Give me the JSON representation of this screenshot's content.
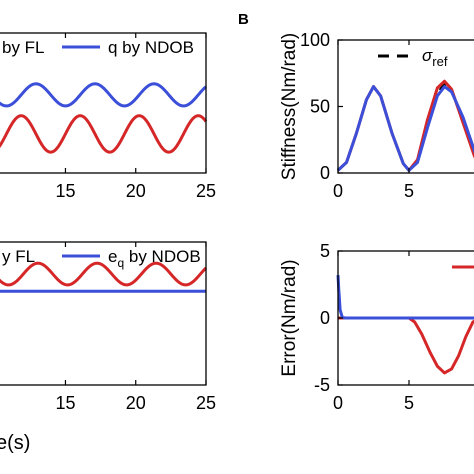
{
  "figure": {
    "panel_b_label": "B",
    "shared_xlabel_fragment": "e(s)"
  },
  "chart_data": [
    {
      "panel": "top-left",
      "type": "line",
      "xlim": [
        10.2,
        25
      ],
      "ylim": [
        -1.15,
        1.0
      ],
      "xticks": [
        15,
        20,
        25
      ],
      "xtick_labels": [
        "15",
        "20",
        "25"
      ],
      "legend": {
        "placement": "top",
        "entries": [
          {
            "label": "by FL",
            "color": "#d62728"
          },
          {
            "label": "q by NDOB",
            "color": "#3b4fd9"
          }
        ]
      },
      "series": [
        {
          "name": "by FL",
          "color": "#d62728",
          "offset": -0.55,
          "amplitude": 0.28,
          "period": 4.2,
          "phase": 15.0,
          "x_start": 10.2,
          "x_end": 25
        },
        {
          "name": "q by NDOB",
          "color": "#3b4fd9",
          "offset": 0.05,
          "amplitude": 0.17,
          "period": 4.2,
          "phase": 16.05,
          "x_start": 10.2,
          "x_end": 25
        }
      ]
    },
    {
      "panel": "bottom-left",
      "type": "line",
      "xlim": [
        10.2,
        25
      ],
      "ylim": [
        -1.9,
        1.0
      ],
      "xticks": [
        15,
        20,
        25
      ],
      "xtick_labels": [
        "15",
        "20",
        "25"
      ],
      "legend": {
        "placement": "top",
        "entries": [
          {
            "label": "y FL",
            "color": "#d62728"
          },
          {
            "label": "e",
            "sub": "q",
            "suffix": " by NDOB",
            "color": "#3b4fd9"
          }
        ]
      },
      "series": [
        {
          "name": "y FL",
          "color": "#d62728",
          "offset": 0.35,
          "amplitude": 0.22,
          "period": 4.2,
          "phase": 12.0,
          "x_start": 10.2,
          "x_end": 25
        },
        {
          "name": "e_q by NDOB",
          "color": "#3b4fd9",
          "offset": 0.0,
          "amplitude": 0.0,
          "period": 4.2,
          "phase": 0,
          "x_start": 10.2,
          "x_end": 25
        }
      ]
    },
    {
      "panel": "top-right",
      "type": "line",
      "ylabel": "Stiffness(Nm/rad)",
      "xlim": [
        0,
        10
      ],
      "ylim": [
        0,
        100
      ],
      "xticks": [
        0,
        5
      ],
      "xtick_labels": [
        "0",
        "5"
      ],
      "yticks": [
        0,
        50,
        100
      ],
      "ytick_labels": [
        "0",
        "50",
        "100"
      ],
      "legend": {
        "placement": "top-right",
        "entries": [
          {
            "label": "σ",
            "sub": "ref",
            "style": "dashed",
            "color": "#000000"
          }
        ]
      },
      "series": [
        {
          "name": "σ_ref",
          "color": "#000000",
          "dashed": true,
          "points": [
            [
              0,
              2
            ],
            [
              0.6,
              8
            ],
            [
              1.3,
              30
            ],
            [
              2.0,
              55
            ],
            [
              2.5,
              65
            ],
            [
              3.0,
              58
            ],
            [
              3.8,
              30
            ],
            [
              4.6,
              7
            ],
            [
              5.0,
              2
            ],
            [
              5.6,
              8
            ],
            [
              6.3,
              35
            ],
            [
              7.0,
              60
            ],
            [
              7.5,
              67
            ],
            [
              8.0,
              62
            ],
            [
              8.8,
              40
            ],
            [
              9.6,
              15
            ],
            [
              10,
              5
            ]
          ]
        },
        {
          "name": "red",
          "color": "#d62728",
          "points": [
            [
              0,
              2
            ],
            [
              0.6,
              8
            ],
            [
              1.3,
              30
            ],
            [
              2.0,
              55
            ],
            [
              2.5,
              65
            ],
            [
              3.0,
              58
            ],
            [
              3.8,
              30
            ],
            [
              4.6,
              7
            ],
            [
              5.0,
              2
            ],
            [
              5.6,
              10
            ],
            [
              6.3,
              40
            ],
            [
              7.0,
              64
            ],
            [
              7.5,
              69
            ],
            [
              8.0,
              63
            ],
            [
              8.8,
              38
            ],
            [
              9.6,
              13
            ],
            [
              10,
              4
            ]
          ]
        },
        {
          "name": "blue",
          "color": "#3b4fd9",
          "points": [
            [
              0,
              2
            ],
            [
              0.6,
              8
            ],
            [
              1.3,
              30
            ],
            [
              2.0,
              55
            ],
            [
              2.5,
              65
            ],
            [
              3.0,
              58
            ],
            [
              3.8,
              30
            ],
            [
              4.6,
              7
            ],
            [
              5.0,
              2
            ],
            [
              5.6,
              8
            ],
            [
              6.3,
              34
            ],
            [
              7.0,
              58
            ],
            [
              7.5,
              65
            ],
            [
              8.0,
              61
            ],
            [
              8.8,
              42
            ],
            [
              9.6,
              17
            ],
            [
              10,
              6
            ]
          ]
        }
      ]
    },
    {
      "panel": "bottom-right",
      "type": "line",
      "ylabel": "Error(Nm/rad)",
      "xlim": [
        0,
        10
      ],
      "ylim": [
        -5,
        5
      ],
      "xticks": [
        0,
        5
      ],
      "xtick_labels": [
        "0",
        "5"
      ],
      "yticks": [
        -5,
        0,
        5
      ],
      "ytick_labels": [
        "-5",
        "0",
        "5"
      ],
      "legend": {
        "placement": "top-right",
        "entries": [
          {
            "label": "",
            "color": "#d62728"
          }
        ]
      },
      "series": [
        {
          "name": "red",
          "color": "#d62728",
          "points": [
            [
              0,
              0
            ],
            [
              5.0,
              0
            ],
            [
              5.4,
              -0.3
            ],
            [
              5.9,
              -1.2
            ],
            [
              6.5,
              -2.6
            ],
            [
              7.0,
              -3.6
            ],
            [
              7.5,
              -4.1
            ],
            [
              8.0,
              -3.8
            ],
            [
              8.5,
              -2.8
            ],
            [
              9.0,
              -1.4
            ],
            [
              9.5,
              -0.3
            ],
            [
              10,
              0
            ]
          ]
        },
        {
          "name": "blue",
          "color": "#3b4fd9",
          "points": [
            [
              0,
              3.2
            ],
            [
              0.05,
              2.2
            ],
            [
              0.15,
              0.6
            ],
            [
              0.3,
              0.05
            ],
            [
              0.5,
              0
            ],
            [
              10,
              0
            ]
          ]
        }
      ]
    }
  ]
}
